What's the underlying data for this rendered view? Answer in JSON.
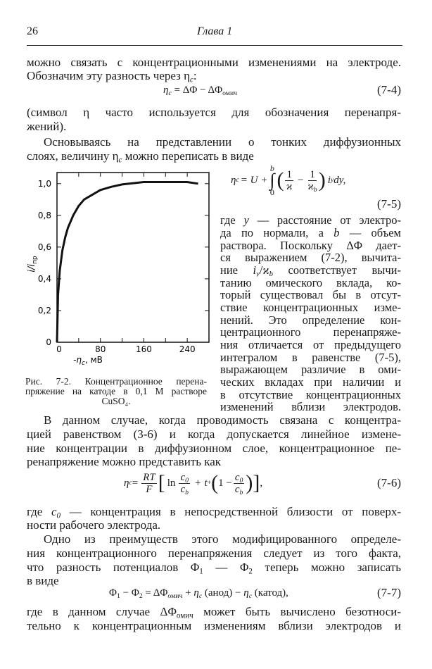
{
  "header": {
    "page_number": "26",
    "running_title": "Глава 1"
  },
  "top": {
    "lines": [
      [
        "можно связать с концентрационными изменениями на электроде."
      ],
      [
        "Обозначим эту разность через ",
        {
          "m": "η",
          "sub": "c"
        },
        ":"
      ],
      [
        "(символ η часто используется для обозначения перенапря-"
      ],
      [
        "жений)."
      ],
      [
        "Основываясь на представлении о тонких диффузионных"
      ],
      [
        "слоях, величину ",
        {
          "m": "η",
          "sub": "c"
        },
        " можно переписать в виде"
      ]
    ]
  },
  "eq_7_4": {
    "lhs": "η",
    "lhs_sub": "c",
    "rhs": " = ΔΦ − ΔΦ",
    "rhs_sub": "омич",
    "number": "(7-4)"
  },
  "eq_7_5": {
    "lhs": "η",
    "lhs_sub": "c",
    "mid": " = U +",
    "int_upper": "b",
    "int_lower": "0",
    "int_sign": "∫",
    "paren_open": "(",
    "frac1_num": "1",
    "frac1_den": "ϰ",
    "minus": "−",
    "frac2_num": "1",
    "frac2_den": "ϰ",
    "frac2_den_sub": "b",
    "paren_close": ")",
    "tail_i": "i",
    "tail_sub": "y",
    "tail": " dy,",
    "number": "(7-5)"
  },
  "right": {
    "lines": [
      [
        "где ",
        {
          "i": "y"
        },
        " — расстояние от электро-"
      ],
      [
        "да по нормали, а ",
        {
          "i": "b"
        },
        " — объем"
      ],
      [
        "раствора. Поскольку ΔΦ дает-"
      ],
      [
        "ся выражением (7-2), вычита-"
      ],
      [
        "ние ",
        {
          "i": "i",
          "sub": "y"
        },
        "/",
        {
          "i": "ϰ",
          "sub": "b"
        },
        " соответствует вычи-"
      ],
      [
        "танию омического вклада, ко-"
      ],
      [
        "торый существовал бы в отсут-"
      ],
      [
        "ствие концентрационных изме-"
      ],
      [
        "нений. Это определение кон-"
      ],
      [
        "центрационного перенапряже-"
      ],
      [
        "ния отличается от предыдущего"
      ],
      [
        "интегралом в равенстве (7-5),"
      ],
      [
        "выражающем различие в оми-"
      ],
      [
        "ческих вкладах при наличии и"
      ],
      [
        "в отсутствие концентрационных"
      ],
      [
        "изменений вблизи электродов."
      ]
    ]
  },
  "figure": {
    "caption_lines": [
      "Рис. 7-2. Концентрационное перена-",
      "пряжение на катоде в 0,1 М растворе",
      "CuSO₄."
    ]
  },
  "chart_data": {
    "type": "line",
    "title": "",
    "xlabel": "-ηc, мВ",
    "xlabel_main": "-η",
    "xlabel_sub": "c",
    "xlabel_unit": ", мВ",
    "ylabel": "i/iпр",
    "ylabel_main": "i/i",
    "ylabel_sub": "пр",
    "xlim": [
      0,
      280
    ],
    "ylim": [
      0,
      1.07
    ],
    "xticks": [
      0,
      80,
      160,
      240
    ],
    "xtick_labels": [
      "0",
      "80",
      "160",
      "240"
    ],
    "yticks": [
      0,
      0.2,
      0.4,
      0.6,
      0.8,
      1.0
    ],
    "ytick_labels": [
      "0",
      "0,2",
      "0,4",
      "0,6",
      "0,8",
      "1,0"
    ],
    "minor_xticks": [
      40,
      120,
      200
    ],
    "grid": false,
    "series": [
      {
        "x": [
          0,
          2,
          5,
          10,
          15,
          20,
          30,
          40,
          50,
          60,
          80,
          100,
          120,
          160,
          200,
          240,
          260
        ],
        "y": [
          0,
          0.3,
          0.45,
          0.58,
          0.66,
          0.72,
          0.8,
          0.86,
          0.9,
          0.92,
          0.96,
          0.98,
          0.995,
          1.01,
          1.01,
          1.01,
          1.0
        ]
      }
    ]
  },
  "bottom": {
    "lines_a": [
      [
        "В данном случае, когда проводимость связана с концентра-"
      ],
      [
        "цией равенством (3-6) и когда допускается линейное измене-"
      ],
      [
        "ние концентрации в диффузионном слое, концентрационное пе-"
      ],
      [
        "ренапряжение можно представить как"
      ]
    ],
    "lines_b": [
      [
        "где ",
        {
          "i": "c",
          "sub": "0"
        },
        " — концентрация в непосредственной близости от поверх-"
      ],
      [
        "ности рабочего электрода."
      ],
      [
        "Одно из преимуществ этого модифицированного определе-"
      ],
      [
        "ния концентрационного перенапряжения следует из того факта,"
      ],
      [
        "что разность потенциалов ",
        {
          "m": "Φ",
          "sub": "1"
        },
        " — ",
        {
          "m": "Φ",
          "sub": "2"
        },
        " теперь можно записать"
      ],
      [
        "в виде"
      ]
    ],
    "lines_c": [
      [
        "где в данном случае ",
        {
          "m": "ΔΦ",
          "sub": "омич"
        },
        " может быть вычислено безотноси-"
      ],
      [
        "тельно к концентрационным изменениям вблизи электродов и"
      ]
    ]
  },
  "eq_7_6": {
    "lhs": "η",
    "lhs_sub": "c",
    "eq": " =",
    "rt": "RT",
    "f": "F",
    "lb": "[",
    "ln": "ln",
    "c0": "c",
    "c0_sub": "0",
    "cb": "c",
    "cb_sub": "b",
    "plus": "+",
    "t": "t",
    "t_sub": "+",
    "lp": "(",
    "one": "1 −",
    "rp": ")",
    "rb": "]",
    "end": ",",
    "number": "(7-6)"
  },
  "eq_7_7": {
    "phi1": "Φ",
    "phi1_sub": "1",
    "minus": " − ",
    "phi2": "Φ",
    "phi2_sub": "2",
    "eq": " = ΔΦ",
    "ohm_sub": "омич",
    "plus": " + ",
    "eta": "η",
    "eta_sub": "c",
    "anode": " (анод) − ",
    "eta2": "η",
    "eta2_sub": "c",
    "cathode": " (катод),",
    "number": "(7-7)"
  }
}
